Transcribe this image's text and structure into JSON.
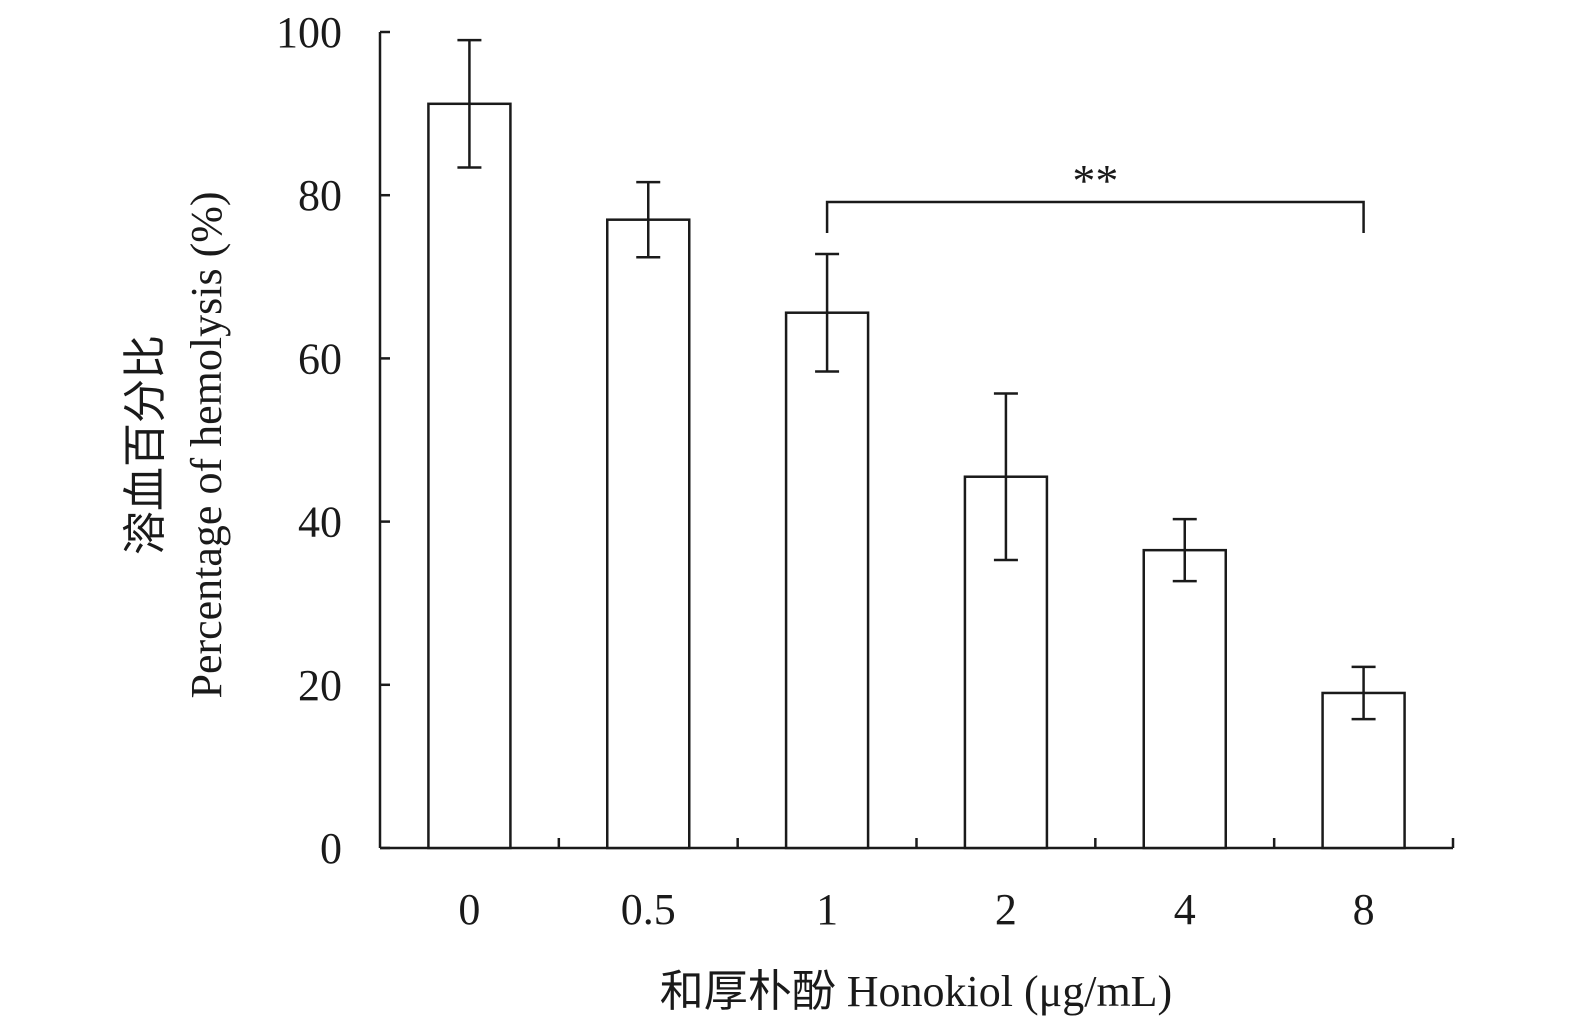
{
  "chart_data": {
    "type": "bar",
    "title": "",
    "categories": [
      "0",
      "0.5",
      "1",
      "2",
      "4",
      "8"
    ],
    "values": [
      91.2,
      77.0,
      65.6,
      45.5,
      36.5,
      19.0
    ],
    "errors": [
      7.8,
      4.6,
      7.2,
      10.2,
      3.8,
      3.2
    ],
    "xlabel": "和厚朴酚  Honokiol (μg/mL)",
    "ylabel_cn": "溶血百分比",
    "ylabel_en": "Percentage of hemolysis (%)",
    "ylim": [
      0,
      100
    ],
    "yticks": [
      "0",
      "20",
      "40",
      "60",
      "80",
      "100"
    ],
    "significance": {
      "label": "**",
      "from_category": "1",
      "to_category": "8"
    },
    "bar_fill": "#ffffff",
    "stroke_color": "#1a1a1a",
    "grid": false
  }
}
